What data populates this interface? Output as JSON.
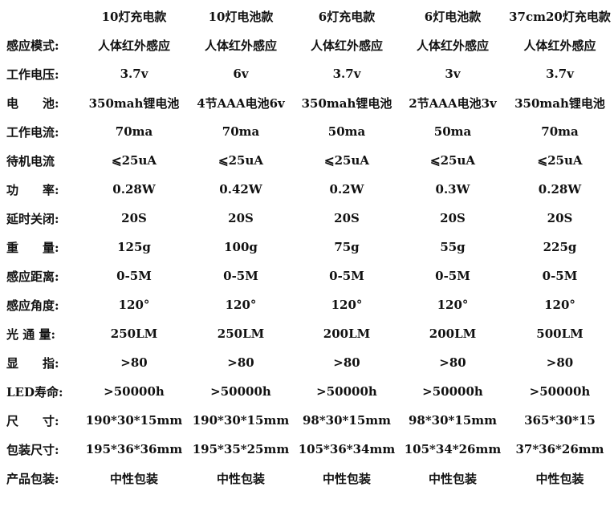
{
  "columns": [
    "10灯充电款",
    "10灯电池款",
    "6灯充电款",
    "6灯电池款",
    "37cm20灯充电款"
  ],
  "rows": [
    {
      "label": "感应模式:",
      "values": [
        "人体红外感应",
        "人体红外感应",
        "人体红外感应",
        "人体红外感应",
        "人体红外感应"
      ]
    },
    {
      "label": "工作电压:",
      "values": [
        "3.7v",
        "6v",
        "3.7v",
        "3v",
        "3.7v"
      ]
    },
    {
      "label": "电　　池:",
      "values": [
        "350mah锂电池",
        "4节AAA电池6v",
        "350mah锂电池",
        "2节AAA电池3v",
        "350mah锂电池"
      ]
    },
    {
      "label": "工作电流:",
      "values": [
        "70ma",
        "70ma",
        "50ma",
        "50ma",
        "70ma"
      ]
    },
    {
      "label": "待机电流",
      "values": [
        "⩽25uA",
        "⩽25uA",
        "⩽25uA",
        "⩽25uA",
        "⩽25uA"
      ]
    },
    {
      "label": "功　　率:",
      "values": [
        "0.28W",
        "0.42W",
        "0.2W",
        "0.3W",
        "0.28W"
      ]
    },
    {
      "label": "延时关闭:",
      "values": [
        "20S",
        "20S",
        "20S",
        "20S",
        "20S"
      ]
    },
    {
      "label": "重　　量:",
      "values": [
        "125g",
        "100g",
        "75g",
        "55g",
        "225g"
      ]
    },
    {
      "label": "感应距离:",
      "values": [
        "0-5M",
        "0-5M",
        "0-5M",
        "0-5M",
        "0-5M"
      ]
    },
    {
      "label": "感应角度:",
      "values": [
        "120°",
        "120°",
        "120°",
        "120°",
        "120°"
      ]
    },
    {
      "label": "光 通 量:",
      "values": [
        "250LM",
        "250LM",
        "200LM",
        "200LM",
        "500LM"
      ]
    },
    {
      "label": "显　　指:",
      "values": [
        ">80",
        ">80",
        ">80",
        ">80",
        ">80"
      ]
    },
    {
      "label": "LED寿命:",
      "values": [
        ">50000h",
        ">50000h",
        ">50000h",
        ">50000h",
        ">50000h"
      ]
    },
    {
      "label": "尺　　寸:",
      "values": [
        "190*30*15mm",
        "190*30*15mm",
        "98*30*15mm",
        "98*30*15mm",
        "365*30*15"
      ]
    },
    {
      "label": "包装尺寸:",
      "values": [
        "195*36*36mm",
        "195*35*25mm",
        "105*36*34mm",
        "105*34*26mm",
        "37*36*26mm"
      ]
    },
    {
      "label": "产品包装:",
      "values": [
        "中性包装",
        "中性包装",
        "中性包装",
        "中性包装",
        "中性包装"
      ]
    }
  ]
}
